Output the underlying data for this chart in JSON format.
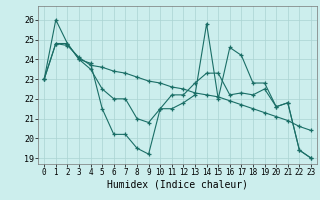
{
  "xlabel": "Humidex (Indice chaleur)",
  "background_color": "#cceeed",
  "grid_color": "#aad4d2",
  "line_color": "#1a6e66",
  "xlim": [
    -0.5,
    23.5
  ],
  "ylim": [
    18.7,
    26.7
  ],
  "yticks": [
    19,
    20,
    21,
    22,
    23,
    24,
    25,
    26
  ],
  "xticks": [
    0,
    1,
    2,
    3,
    4,
    5,
    6,
    7,
    8,
    9,
    10,
    11,
    12,
    13,
    14,
    15,
    16,
    17,
    18,
    19,
    20,
    21,
    22,
    23
  ],
  "series": [
    [
      23.0,
      26.0,
      24.8,
      24.0,
      23.8,
      21.5,
      20.2,
      20.2,
      19.5,
      19.2,
      21.5,
      21.5,
      21.8,
      22.2,
      25.8,
      22.0,
      24.6,
      24.2,
      22.8,
      22.8,
      21.6,
      21.8,
      19.4,
      19.0
    ],
    [
      23.0,
      24.8,
      24.7,
      24.1,
      23.7,
      23.6,
      23.4,
      23.3,
      23.1,
      22.9,
      22.8,
      22.6,
      22.5,
      22.3,
      22.2,
      22.1,
      21.9,
      21.7,
      21.5,
      21.3,
      21.1,
      20.9,
      20.6,
      20.4
    ],
    [
      23.0,
      24.8,
      24.8,
      24.0,
      23.5,
      22.5,
      22.0,
      22.0,
      21.0,
      20.8,
      21.5,
      22.2,
      22.2,
      22.8,
      23.3,
      23.3,
      22.2,
      22.3,
      22.2,
      22.5,
      21.6,
      21.8,
      19.4,
      19.0
    ]
  ]
}
